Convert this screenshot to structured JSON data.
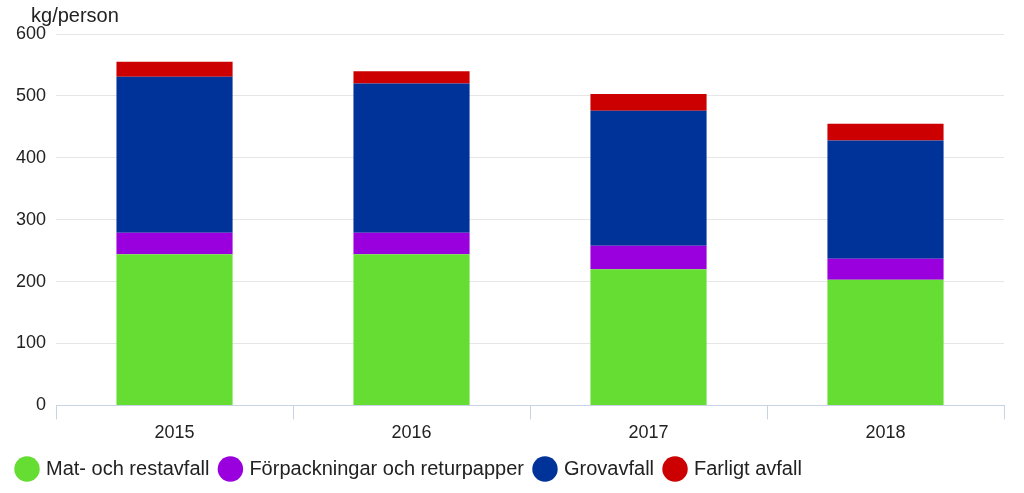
{
  "chart_data": {
    "type": "bar",
    "stacked": true,
    "ylabel": "kg/person",
    "categories": [
      "2015",
      "2016",
      "2017",
      "2018"
    ],
    "series": [
      {
        "name": "Mat- och restavfall",
        "color": "#66dd33",
        "values": [
          244,
          244,
          220,
          203
        ]
      },
      {
        "name": "Förpackningar och returpapper",
        "color": "#9900dd",
        "values": [
          35,
          35,
          38,
          34
        ]
      },
      {
        "name": "Grovavfall",
        "color": "#003399",
        "values": [
          252,
          241,
          218,
          191
        ]
      },
      {
        "name": "Farligt avfall",
        "color": "#cc0000",
        "values": [
          24,
          20,
          27,
          27
        ]
      }
    ],
    "ylim": [
      0,
      600
    ],
    "yticks": [
      0,
      100,
      200,
      300,
      400,
      500,
      600
    ],
    "grid": true,
    "legend": "bottom"
  }
}
